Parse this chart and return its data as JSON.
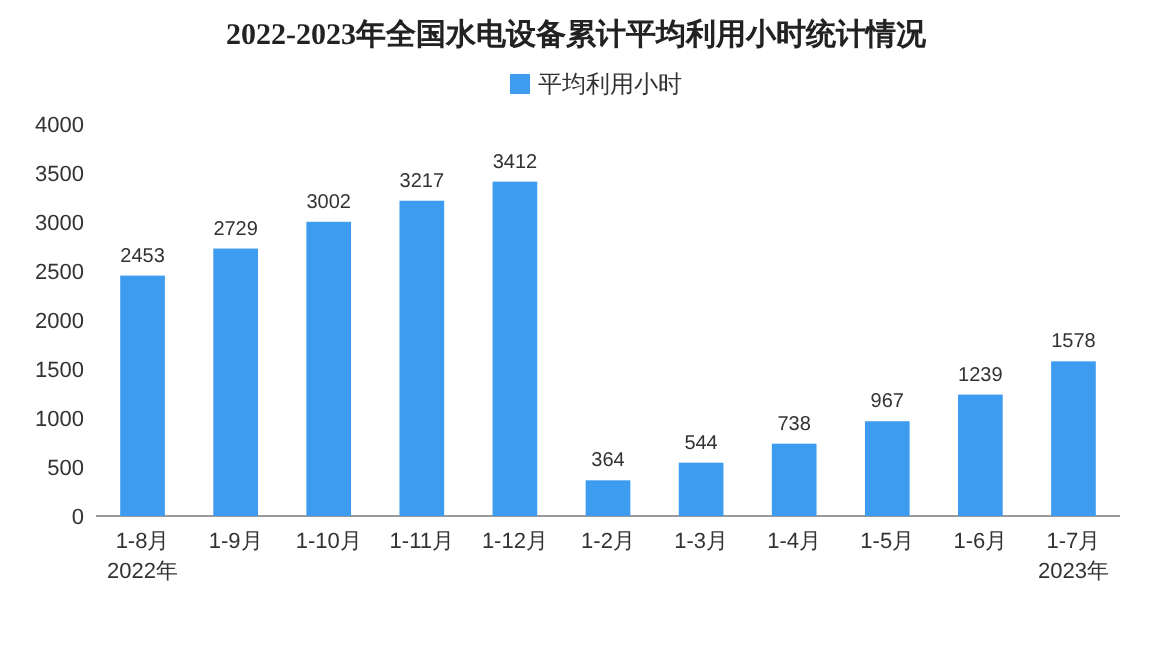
{
  "chart_data": {
    "type": "bar",
    "title": "2022-2023年全国水电设备累计平均利用小时统计情况",
    "categories": [
      "1-8月\n2022年",
      "1-9月",
      "1-10月",
      "1-11月",
      "1-12月",
      "1-2月",
      "1-3月",
      "1-4月",
      "1-5月",
      "1-6月",
      "1-7月\n2023年"
    ],
    "series": [
      {
        "name": "平均利用小时",
        "color": "#3d9cf0",
        "values": [
          2453,
          2729,
          3002,
          3217,
          3412,
          364,
          544,
          738,
          967,
          1239,
          1578
        ]
      }
    ],
    "ylim": [
      0,
      4000
    ],
    "yticks": [
      0,
      500,
      1000,
      1500,
      2000,
      2500,
      3000,
      3500,
      4000
    ],
    "data_labels": true,
    "legend": "top",
    "grid": false
  }
}
